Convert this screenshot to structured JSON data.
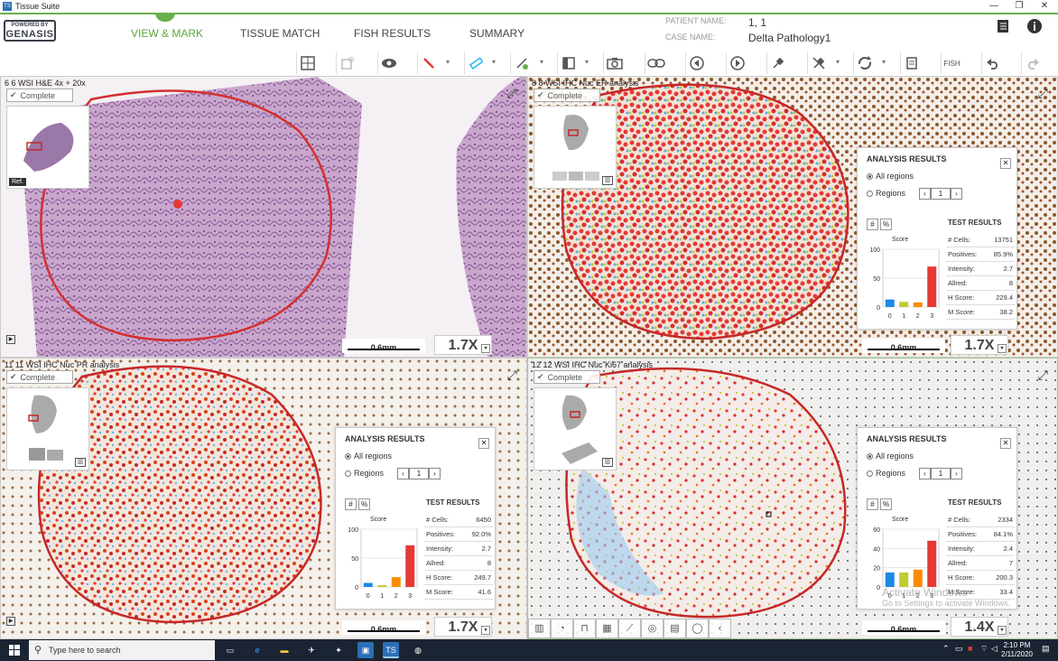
{
  "window": {
    "title": "Tissue Suite",
    "app_icon": "TS",
    "controls": [
      "—",
      "❐",
      "✕"
    ]
  },
  "header": {
    "logo_top": "POWERED BY",
    "logo_main": "GENASIS",
    "tabs": [
      {
        "label": "VIEW & MARK",
        "active": true
      },
      {
        "label": "TISSUE MATCH",
        "active": false
      },
      {
        "label": "FISH RESULTS",
        "active": false
      },
      {
        "label": "SUMMARY",
        "active": false
      }
    ],
    "patient_label": "PATIENT NAME:",
    "patient_value": "1, 1",
    "case_label": "CASE NAME:",
    "case_value": "Delta Pathology1"
  },
  "toolbar": {
    "icons": [
      "layout-grid-icon",
      "overlay-icon",
      "eye-icon",
      "pen-icon",
      "ruler-icon",
      "annotation-icon",
      "panel-icon",
      "camera-icon",
      "link-icon",
      "prev-icon",
      "play-icon",
      "pin-icon",
      "pin-off-icon",
      "sync-icon",
      "report-icon",
      "fish-icon",
      "undo-icon",
      "redo-icon"
    ],
    "fish_label": "FISH"
  },
  "panels": [
    {
      "title": "6 6 WSI H&E 4x + 20x",
      "status": "Complete",
      "scale": "0.6mm",
      "zoom": "1.7X",
      "ref": "Ref."
    },
    {
      "title": "8 8 WSI IHC Nuc ER analysis",
      "status": "Complete",
      "scale": "0.6mm",
      "zoom": "1.7X"
    },
    {
      "title": "11 11 WSI IHC Nuc PR analysis",
      "status": "Complete",
      "scale": "0.6mm",
      "zoom": "1.7X"
    },
    {
      "title": "12 12 WSI IHC Nuc Ki67 analysis",
      "status": "Complete",
      "scale": "0.6mm",
      "zoom": "1.4X"
    }
  ],
  "analysis_common": {
    "title": "ANALYSIS RESULTS",
    "all_regions": "All regions",
    "regions": "Regions",
    "page": "1",
    "hash_btn": "#",
    "pct_btn": "%",
    "score_label": "Score",
    "test_results": "TEST RESULTS",
    "row_labels": [
      "# Cells:",
      "Positives:",
      "Intensity:",
      "Allred:",
      "H Score:",
      "M Score:"
    ],
    "bar_colors": [
      "#1e88e5",
      "#c0ca33",
      "#fb8c00",
      "#e53935"
    ],
    "x_ticks": [
      "0",
      "1",
      "2",
      "3"
    ]
  },
  "analysis": [
    {
      "values": [
        "13751",
        "85.9%",
        "2.7",
        "8",
        "229.4",
        "38.2"
      ],
      "y_ticks": [
        "100",
        "50",
        "0"
      ],
      "ymax": 100,
      "bars": [
        13,
        9,
        8,
        70
      ]
    },
    {
      "values": [
        "6450",
        "92.0%",
        "2.7",
        "8",
        "249.7",
        "41.6"
      ],
      "y_ticks": [
        "100",
        "50",
        "0"
      ],
      "ymax": 100,
      "bars": [
        7,
        3,
        17,
        72
      ]
    },
    {
      "values": [
        "2334",
        "84.1%",
        "2.4",
        "7",
        "200.3",
        "33.4"
      ],
      "y_ticks": [
        "60",
        "40",
        "20",
        "0"
      ],
      "ymax": 60,
      "bars": [
        15,
        15,
        18,
        48
      ]
    }
  ],
  "watermark": {
    "line1": "Activate Windows",
    "line2": "Go to Settings to activate Windows."
  },
  "taskbar": {
    "search_placeholder": "Type here to search",
    "time": "2:10 PM",
    "date": "2/11/2020"
  }
}
